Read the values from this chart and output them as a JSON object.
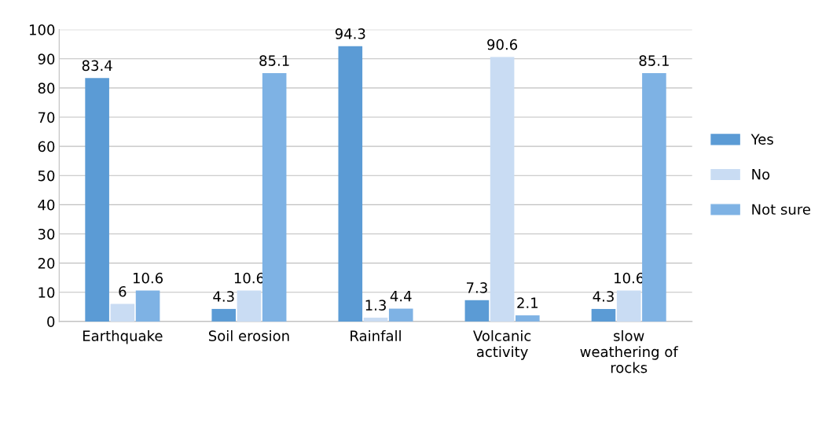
{
  "chart_data": {
    "type": "bar",
    "categories": [
      "Earthquake",
      "Soil erosion",
      "Rainfall",
      "Volcanic\nactivity",
      "slow\nweathering of\nrocks"
    ],
    "series": [
      {
        "name": "Yes",
        "color": "#5b9bd5",
        "values": [
          83.4,
          4.3,
          94.3,
          7.3,
          4.3
        ]
      },
      {
        "name": "No",
        "color": "#c9dcf3",
        "values": [
          6,
          10.6,
          1.3,
          90.6,
          10.6
        ]
      },
      {
        "name": "Not sure",
        "color": "#7eb2e4",
        "values": [
          10.6,
          85.1,
          4.4,
          2.1,
          85.1
        ]
      }
    ],
    "ylim": [
      0,
      100
    ],
    "yticks": [
      0,
      10,
      20,
      30,
      40,
      50,
      60,
      70,
      80,
      90,
      100
    ],
    "grid": "y",
    "legend": "right",
    "data_labels": true
  }
}
